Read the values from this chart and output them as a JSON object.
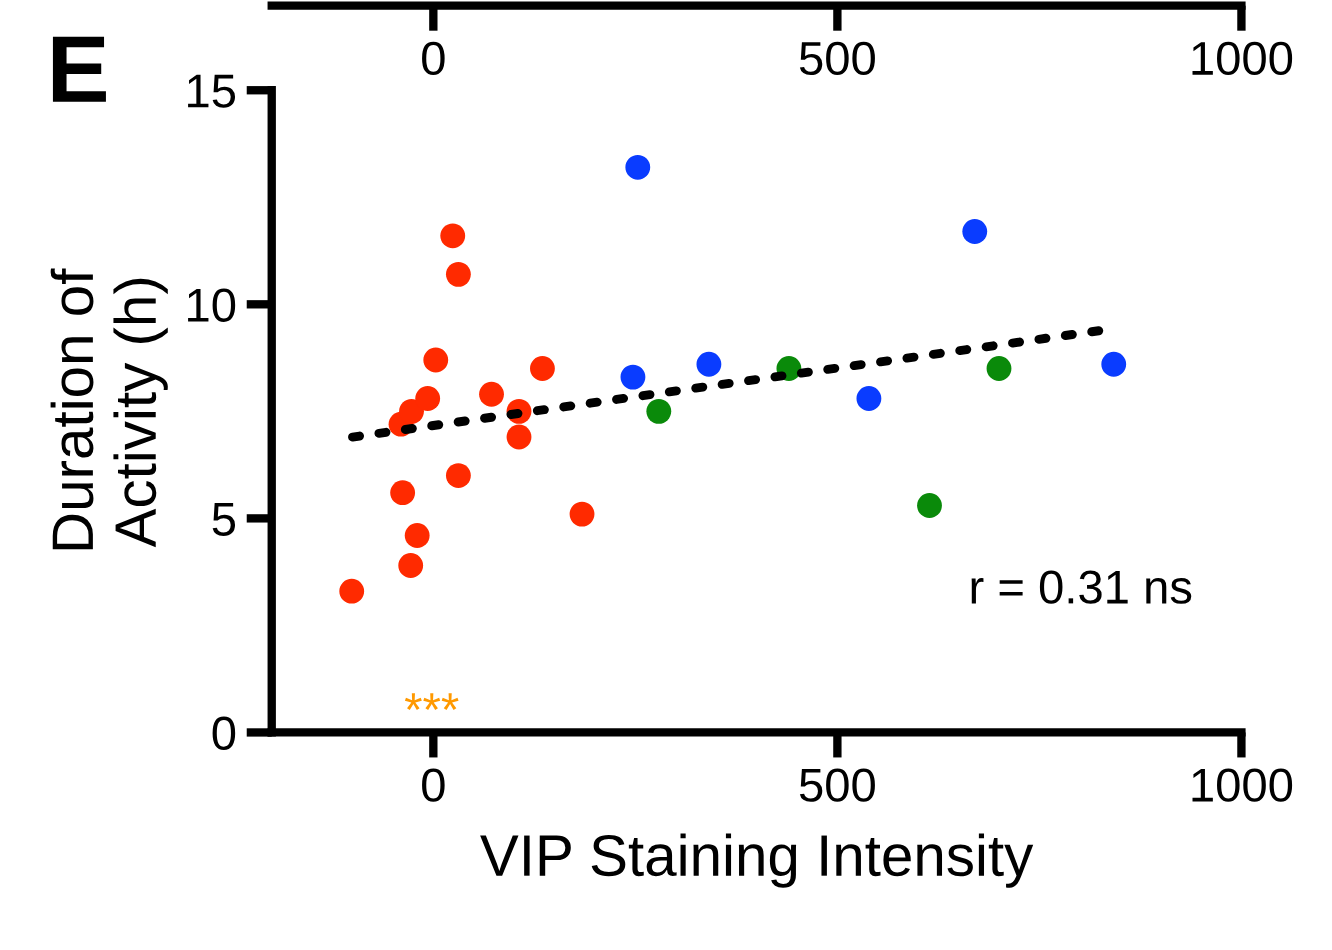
{
  "chart_data": {
    "type": "scatter",
    "xlabel": "VIP Staining Intensity",
    "ylabel": "Duration of\nActivity (h)",
    "xlim": [
      -200,
      1000
    ],
    "xticks": [
      0,
      500,
      1000
    ],
    "ylim": [
      0,
      15
    ],
    "yticks": [
      0,
      5,
      10,
      15
    ],
    "x2lim": [
      -200,
      1000
    ],
    "x2ticks": [
      0,
      500,
      1000
    ],
    "marker": "circle",
    "legend": false,
    "grid": false,
    "annotations": [
      "E",
      "r = 0.31 ns",
      "***"
    ],
    "series": [
      {
        "color": "#ff2a00",
        "x": [
          -101,
          -38,
          -20,
          -28,
          -40,
          -27,
          -7,
          3,
          24,
          31,
          31,
          72,
          106,
          106,
          135,
          184
        ],
        "values": [
          3.3,
          5.6,
          4.6,
          3.9,
          7.2,
          7.5,
          7.8,
          8.7,
          11.6,
          10.7,
          6.0,
          7.9,
          7.5,
          6.9,
          8.5,
          5.1
        ]
      },
      {
        "color": "#0a3cff",
        "x": [
          253,
          247,
          341,
          539,
          670,
          842
        ],
        "values": [
          13.2,
          8.3,
          8.6,
          7.8,
          11.7,
          8.6
        ]
      },
      {
        "color": "#0a8a0a",
        "x": [
          279,
          440,
          614,
          700
        ],
        "values": [
          7.5,
          8.5,
          5.3,
          8.5
        ]
      },
      {
        "type": "line",
        "color": "#000000",
        "line_style": "dotted",
        "marker": "none",
        "x": [
          -100,
          830
        ],
        "values": [
          6.9,
          9.4
        ]
      }
    ]
  }
}
